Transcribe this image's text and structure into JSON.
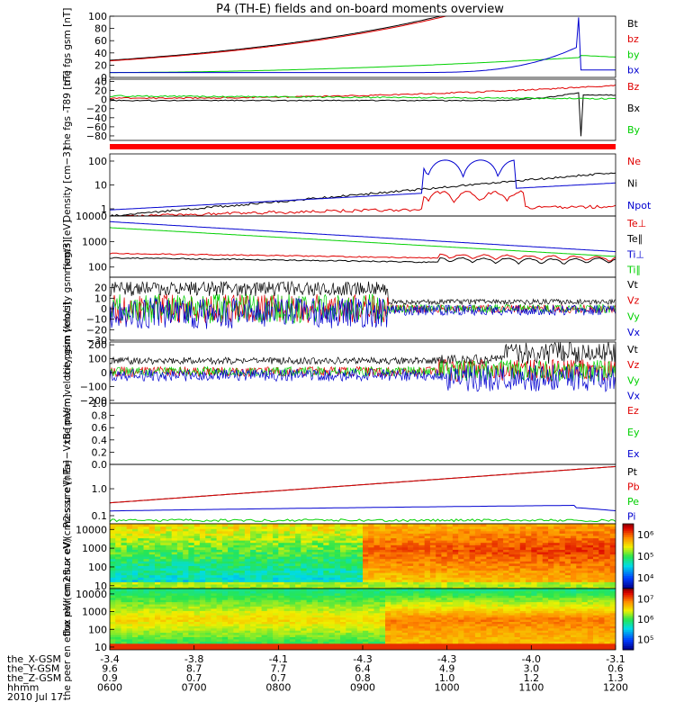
{
  "title": "P4 (TH-E) fields and on-board moments overview",
  "date": "2010 Jul 17",
  "colors": {
    "black": "#000000",
    "red": "#e00000",
    "green": "#00d000",
    "blue": "#0000d0"
  },
  "x_axis": {
    "labels": [
      "the_X-GSM",
      "the_Y-GSM",
      "the_Z-GSM",
      "hhmm"
    ],
    "columns": [
      [
        "-3.4",
        "9.6",
        "0.9",
        "0600"
      ],
      [
        "-3.8",
        "8.7",
        "0.7",
        "0700"
      ],
      [
        "-4.1",
        "7.7",
        "0.7",
        "0800"
      ],
      [
        "-4.3",
        "6.4",
        "0.8",
        "0900"
      ],
      [
        "-4.3",
        "4.9",
        "1.0",
        "1000"
      ],
      [
        "-4.0",
        "3.0",
        "1.2",
        "1100"
      ],
      [
        "-3.1",
        "0.6",
        "1.3",
        "1200"
      ]
    ]
  },
  "chart_data": [
    {
      "type": "line",
      "ylabel": "the fgs gsm [nT]",
      "scale": "linear",
      "ylim": [
        0,
        100
      ],
      "ticks": [
        "0",
        "20",
        "40",
        "60",
        "80",
        "100"
      ],
      "legend": [
        "Bt",
        "bz",
        "by",
        "bx"
      ],
      "series": [
        {
          "name": "Bt",
          "color": "black",
          "shape": "bt"
        },
        {
          "name": "bz",
          "color": "red",
          "shape": "bt_red"
        },
        {
          "name": "by",
          "color": "green",
          "shape": "by"
        },
        {
          "name": "bx",
          "color": "blue",
          "shape": "bx"
        }
      ]
    },
    {
      "type": "line",
      "ylabel": "the fgs -T89 [nT]",
      "scale": "linear",
      "ylim": [
        -90,
        45
      ],
      "ticks": [
        "−80",
        "−60",
        "−40",
        "−20",
        "0",
        "20",
        "40"
      ],
      "legend": [
        "Bz",
        "Bx",
        "By"
      ],
      "series": [
        {
          "name": "Bz",
          "color": "red",
          "shape": "dbz"
        },
        {
          "name": "Bx",
          "color": "black",
          "shape": "dbx"
        },
        {
          "name": "By",
          "color": "green",
          "shape": "dby"
        }
      ]
    },
    {
      "type": "line",
      "ylabel": "Density [cm−3]",
      "scale": "log",
      "ylim": [
        0.5,
        200
      ],
      "ticks": [
        "1",
        "10",
        "100"
      ],
      "legend": [
        "Ne",
        "Ni",
        "Npot"
      ],
      "series": [
        {
          "name": "Ne",
          "color": "red",
          "shape": "ne"
        },
        {
          "name": "Ni",
          "color": "black",
          "shape": "ni"
        },
        {
          "name": "Npot",
          "color": "blue",
          "shape": "npot"
        }
      ]
    },
    {
      "type": "line",
      "ylabel": "magt3 [eV]",
      "scale": "log",
      "ylim": [
        40,
        10000
      ],
      "ticks": [
        "100",
        "1000",
        "10000"
      ],
      "legend": [
        "Te⊥",
        "Te∥",
        "Ti⊥",
        "Ti∥"
      ],
      "series": [
        {
          "name": "Te⊥",
          "color": "red",
          "shape": "teperp"
        },
        {
          "name": "Te∥",
          "color": "black",
          "shape": "tepar"
        },
        {
          "name": "Ti⊥",
          "color": "blue",
          "shape": "tiperp"
        },
        {
          "name": "Ti∥",
          "color": "green",
          "shape": "tipar"
        }
      ]
    },
    {
      "type": "line",
      "ylabel": "the peim velocity gsm [km/s]",
      "scale": "linear",
      "ylim": [
        -30,
        30
      ],
      "ticks": [
        "−30",
        "−20",
        "−10",
        "0",
        "10",
        "20"
      ],
      "legend": [
        "Vt",
        "Vz",
        "Vy",
        "Vx"
      ],
      "series": [
        {
          "name": "Vt",
          "color": "black",
          "shape": "vt1"
        },
        {
          "name": "Vz",
          "color": "red",
          "shape": "noise1"
        },
        {
          "name": "Vy",
          "color": "green",
          "shape": "noise1"
        },
        {
          "name": "Vx",
          "color": "blue",
          "shape": "noise1b"
        }
      ]
    },
    {
      "type": "line",
      "ylabel": "the peem velocity gsm [km/s]",
      "scale": "linear",
      "ylim": [
        -220,
        220
      ],
      "ticks": [
        "−200",
        "−100",
        "0",
        "100",
        "200"
      ],
      "legend": [
        "Vt",
        "Vz",
        "Vy",
        "Vx"
      ],
      "series": [
        {
          "name": "Vt",
          "color": "black",
          "shape": "vt2"
        },
        {
          "name": "Vz",
          "color": "red",
          "shape": "noise2"
        },
        {
          "name": "Vy",
          "color": "green",
          "shape": "noise2"
        },
        {
          "name": "Vx",
          "color": "blue",
          "shape": "noise2b"
        }
      ]
    },
    {
      "type": "line",
      "ylabel": "E=−VxB [mV/m]",
      "scale": "linear",
      "ylim": [
        0,
        1
      ],
      "ticks": [
        "0.0",
        "0.2",
        "0.4",
        "0.6",
        "0.8",
        "1.0"
      ],
      "legend": [
        "Ez",
        "Ey",
        "Ex"
      ],
      "series": []
    },
    {
      "type": "line",
      "ylabel": "Pressure [nPa]",
      "scale": "log",
      "ylim": [
        0.05,
        8
      ],
      "ticks": [
        "0.1",
        "1.0"
      ],
      "legend": [
        "Pt",
        "Pb",
        "Pe",
        "Pi"
      ],
      "series": [
        {
          "name": "Pt",
          "color": "black",
          "shape": "pt"
        },
        {
          "name": "Pb",
          "color": "red",
          "shape": "pt"
        },
        {
          "name": "Pe",
          "color": "green",
          "shape": "pe"
        },
        {
          "name": "Pi",
          "color": "blue",
          "shape": "pi"
        }
      ]
    },
    {
      "type": "heatmap",
      "ylabel": "the peir en eflux eV/(cm2 s sr eV)",
      "scale": "log",
      "ylim": [
        7,
        20000
      ],
      "ticks": [
        "10",
        "100",
        "1000",
        "10000"
      ],
      "colorbar": {
        "ticks": [
          "10⁴",
          "10⁵",
          "10⁶"
        ]
      },
      "pattern": "ion"
    },
    {
      "type": "heatmap",
      "ylabel": "the peer en eflux eV/(cm2 s sr eV)",
      "scale": "log",
      "ylim": [
        7,
        20000
      ],
      "ticks": [
        "10",
        "100",
        "1000",
        "10000"
      ],
      "colorbar": {
        "ticks": [
          "10⁵",
          "10⁶",
          "10⁷"
        ]
      },
      "pattern": "electron"
    }
  ]
}
